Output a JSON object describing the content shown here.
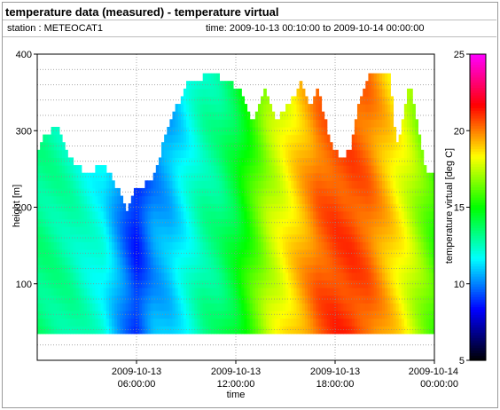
{
  "window": {
    "title": "temperature data (measured) - temperature virtual",
    "station": "station : METEOCAT1",
    "time_range": "time: 2009-10-13 00:10:00 to 2009-10-14 00:00:00"
  },
  "colors": {
    "background": "#ffffff",
    "grid": "#8c8c8c",
    "colormap": [
      "#000000",
      "#0000ff",
      "#00ffff",
      "#00ff00",
      "#ffff00",
      "#ff0000",
      "#ff00ff"
    ]
  },
  "chart_data": {
    "type": "heatmap",
    "title": "",
    "xlabel": "time",
    "ylabel": "height [m]",
    "colorbar_label": "temperature virtual [deg C]",
    "xlim": [
      0,
      24
    ],
    "ylim": [
      0,
      400
    ],
    "clim": [
      5,
      25
    ],
    "grid": true,
    "x_ticks": [
      {
        "value": 6,
        "line1": "2009-10-13",
        "line2": "06:00:00"
      },
      {
        "value": 12,
        "line1": "2009-10-13",
        "line2": "12:00:00"
      },
      {
        "value": 18,
        "line1": "2009-10-13",
        "line2": "18:00:00"
      },
      {
        "value": 24,
        "line1": "2009-10-14",
        "line2": "00:00:00"
      }
    ],
    "y_ticks": [
      100,
      200,
      300,
      400
    ],
    "colorbar_ticks": [
      5,
      10,
      15,
      20,
      25
    ],
    "bottom_height": 35,
    "time_hours": [
      0,
      2,
      4,
      5,
      6,
      7,
      8,
      9,
      10,
      11,
      12,
      14,
      16,
      17,
      18,
      19,
      20,
      22,
      24
    ],
    "surface_temperature": [
      13.5,
      13,
      12,
      10.5,
      9,
      10.5,
      11,
      12,
      13,
      13.5,
      14.5,
      17.5,
      19.5,
      20.5,
      21,
      21,
      20.5,
      18.5,
      16
    ],
    "top_height_profile": [
      {
        "hour": 0,
        "height": 260
      },
      {
        "hour": 0.5,
        "height": 290
      },
      {
        "hour": 1.3,
        "height": 300
      },
      {
        "hour": 2,
        "height": 260
      },
      {
        "hour": 3,
        "height": 240
      },
      {
        "hour": 4,
        "height": 250
      },
      {
        "hour": 5,
        "height": 215
      },
      {
        "hour": 5.5,
        "height": 190
      },
      {
        "hour": 6,
        "height": 220
      },
      {
        "hour": 7,
        "height": 230
      },
      {
        "hour": 7.5,
        "height": 270
      },
      {
        "hour": 8,
        "height": 300
      },
      {
        "hour": 8.5,
        "height": 330
      },
      {
        "hour": 9,
        "height": 355
      },
      {
        "hour": 10,
        "height": 365
      },
      {
        "hour": 11,
        "height": 365
      },
      {
        "hour": 11.8,
        "height": 355
      },
      {
        "hour": 12.5,
        "height": 340
      },
      {
        "hour": 13,
        "height": 300
      },
      {
        "hour": 13.8,
        "height": 350
      },
      {
        "hour": 14.5,
        "height": 310
      },
      {
        "hour": 15.5,
        "height": 340
      },
      {
        "hour": 16,
        "height": 360
      },
      {
        "hour": 16.5,
        "height": 330
      },
      {
        "hour": 17,
        "height": 350
      },
      {
        "hour": 17.5,
        "height": 300
      },
      {
        "hour": 18,
        "height": 270
      },
      {
        "hour": 18.5,
        "height": 260
      },
      {
        "hour": 19,
        "height": 275
      },
      {
        "hour": 19.5,
        "height": 340
      },
      {
        "hour": 20,
        "height": 365
      },
      {
        "hour": 21.3,
        "height": 365
      },
      {
        "hour": 21.7,
        "height": 280
      },
      {
        "hour": 22,
        "height": 300
      },
      {
        "hour": 22.5,
        "height": 365
      },
      {
        "hour": 23,
        "height": 300
      },
      {
        "hour": 23.5,
        "height": 240
      },
      {
        "hour": 24,
        "height": 245
      }
    ]
  }
}
